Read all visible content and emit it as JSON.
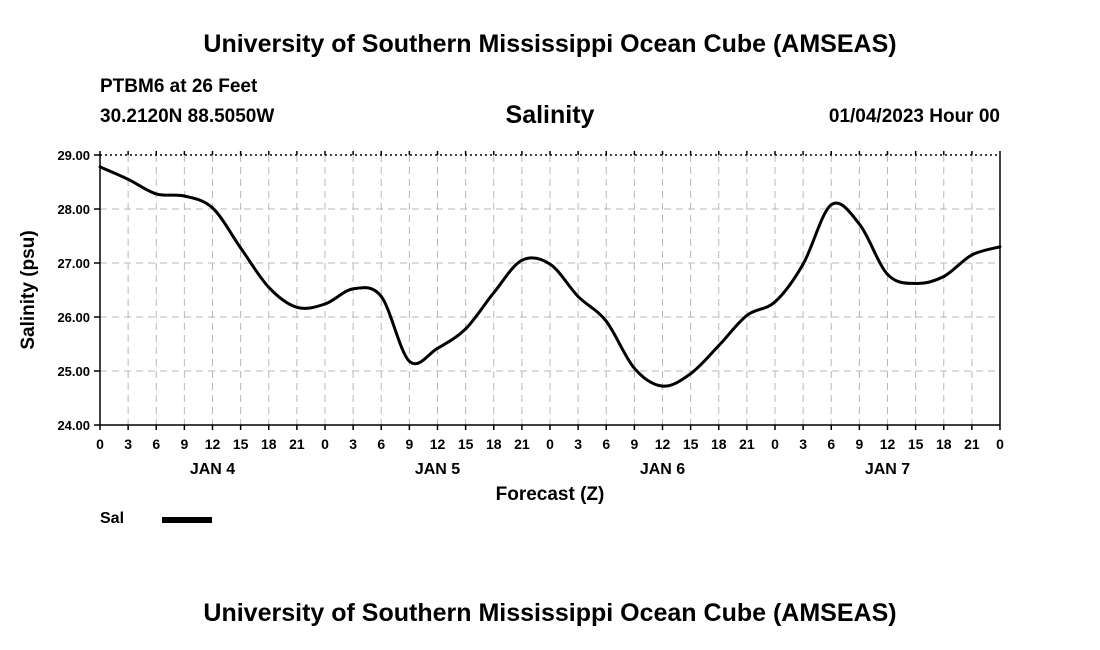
{
  "page": {
    "header_title": "University of Southern Mississippi Ocean Cube (AMSEAS)",
    "footer_title": "University of Southern Mississippi Ocean Cube (AMSEAS)",
    "station_name": "PTBM6 at 26 Feet",
    "station_coords": "30.2120N  88.5050W",
    "run_time": "01/04/2023 Hour 00"
  },
  "legend": {
    "label": "Sal"
  },
  "chart_data": {
    "type": "line",
    "title": "Salinity",
    "xlabel": "Forecast (Z)",
    "ylabel": "Salinity (psu)",
    "xlim": [
      0,
      96
    ],
    "ylim": [
      24,
      29
    ],
    "grid": true,
    "legend_position": "bottom-left",
    "yticks": [
      24,
      25,
      26,
      27,
      28,
      29
    ],
    "ytick_labels": [
      "24.00",
      "25.00",
      "26.00",
      "27.00",
      "28.00",
      "29.00"
    ],
    "xtick_labels": [
      "0",
      "3",
      "6",
      "9",
      "12",
      "15",
      "18",
      "21",
      "0",
      "3",
      "6",
      "9",
      "12",
      "15",
      "18",
      "21",
      "0",
      "3",
      "6",
      "9",
      "12",
      "15",
      "18",
      "21",
      "0",
      "3",
      "6",
      "9",
      "12",
      "15",
      "18",
      "21",
      "0"
    ],
    "day_labels": [
      {
        "label": "JAN 4",
        "x": 12
      },
      {
        "label": "JAN 5",
        "x": 36
      },
      {
        "label": "JAN 6",
        "x": 60
      },
      {
        "label": "JAN 7",
        "x": 84
      }
    ],
    "series": [
      {
        "name": "Sal",
        "color": "#000000",
        "x": [
          0,
          3,
          6,
          9,
          12,
          15,
          18,
          21,
          24,
          27,
          30,
          33,
          36,
          39,
          42,
          45,
          48,
          51,
          54,
          57,
          60,
          63,
          66,
          69,
          72,
          75,
          78,
          81,
          84,
          87,
          90,
          93,
          96
        ],
        "y": [
          28.78,
          28.55,
          28.28,
          28.24,
          28.02,
          27.28,
          26.55,
          26.18,
          26.24,
          26.52,
          26.38,
          25.18,
          25.42,
          25.78,
          26.45,
          27.05,
          26.98,
          26.38,
          25.92,
          25.05,
          24.72,
          24.95,
          25.47,
          26.03,
          26.28,
          26.98,
          28.08,
          27.72,
          26.79,
          26.62,
          26.75,
          27.15,
          27.3
        ]
      }
    ]
  }
}
